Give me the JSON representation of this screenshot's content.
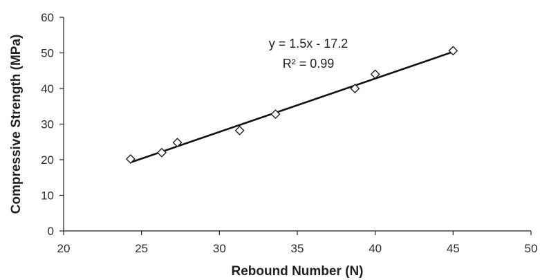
{
  "chart_data": {
    "type": "scatter",
    "title": "",
    "xlabel": "Rebound Number (N)",
    "ylabel": "Compressive Strength (MPa)",
    "xlim": [
      20,
      50
    ],
    "ylim": [
      0,
      60
    ],
    "xticks": [
      20,
      25,
      30,
      35,
      40,
      45,
      50
    ],
    "yticks": [
      0,
      10,
      20,
      30,
      40,
      50,
      60
    ],
    "grid": false,
    "marker": "diamond-open",
    "points": [
      {
        "x": 24.3,
        "y": 20.2
      },
      {
        "x": 26.3,
        "y": 22.0
      },
      {
        "x": 27.3,
        "y": 24.8
      },
      {
        "x": 31.3,
        "y": 28.2
      },
      {
        "x": 33.6,
        "y": 32.8
      },
      {
        "x": 38.7,
        "y": 40.0
      },
      {
        "x": 40.0,
        "y": 44.0
      },
      {
        "x": 45.0,
        "y": 50.6
      }
    ],
    "trendline": {
      "slope": 1.5,
      "intercept": -17.2,
      "x_range": [
        24.3,
        45.0
      ]
    },
    "annotations": {
      "equation": "y = 1.5x - 17.2",
      "r_squared": "R² = 0.99"
    },
    "colors": {
      "marker": "#1f1f1f",
      "trendline": "#111111"
    }
  }
}
